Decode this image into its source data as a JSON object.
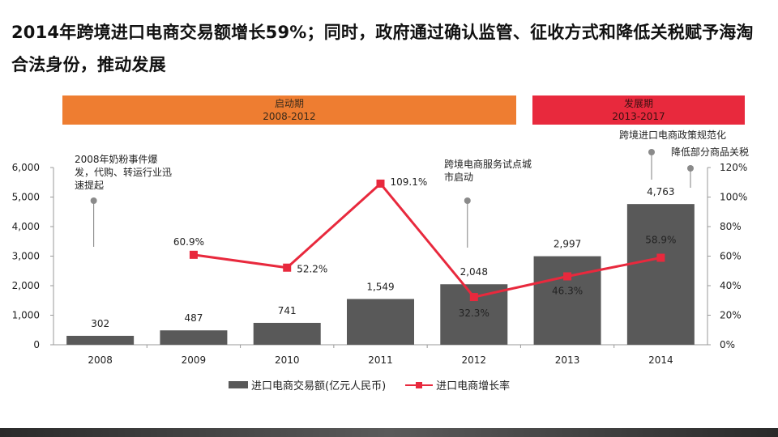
{
  "title": "2014年跨境进口电商交易额增长59%；同时，政府通过确认监管、征收方式和降低关税赋予海淘合法身份，推动发展",
  "phases": [
    {
      "name": "启动期",
      "years": "2008-2012"
    },
    {
      "name": "发展期",
      "years": "2013-2017"
    }
  ],
  "annotations": {
    "a2008": "2008年奶粉事件爆发，代购、转运行业迅速提起",
    "a2012": "跨境电商服务试点城市启动",
    "a2014a": "跨境进口电商政策规范化",
    "a2014b": "降低部分商品关税"
  },
  "legend": {
    "bar": "进口电商交易额(亿元人民币)",
    "line": "进口电商增长率"
  },
  "colors": {
    "bar": "#595959",
    "line": "#e8293d",
    "phase1": "#ee7d31",
    "phase2": "#e8293d"
  },
  "chart_data": {
    "type": "bar",
    "categories": [
      "2008",
      "2009",
      "2010",
      "2011",
      "2012",
      "2013",
      "2014"
    ],
    "series": [
      {
        "name": "进口电商交易额(亿元人民币)",
        "type": "bar",
        "axis": "left",
        "values": [
          302,
          487,
          741,
          1549,
          2048,
          2997,
          4763
        ],
        "labels": [
          "302",
          "487",
          "741",
          "1,549",
          "2,048",
          "2,997",
          "4,763"
        ]
      },
      {
        "name": "进口电商增长率",
        "type": "line",
        "axis": "right",
        "values": [
          null,
          60.9,
          52.2,
          109.1,
          32.3,
          46.3,
          58.9
        ],
        "labels": [
          "",
          "60.9%",
          "52.2%",
          "109.1%",
          "32.3%",
          "46.3%",
          "58.9%"
        ]
      }
    ],
    "y_left": {
      "min": 0,
      "max": 6000,
      "ticks": [
        "0",
        "1,000",
        "2,000",
        "3,000",
        "4,000",
        "5,000",
        "6,000"
      ]
    },
    "y_right": {
      "min": 0,
      "max": 120,
      "ticks": [
        "0%",
        "20%",
        "40%",
        "60%",
        "80%",
        "100%",
        "120%"
      ]
    },
    "grid": false,
    "legend_position": "bottom"
  }
}
